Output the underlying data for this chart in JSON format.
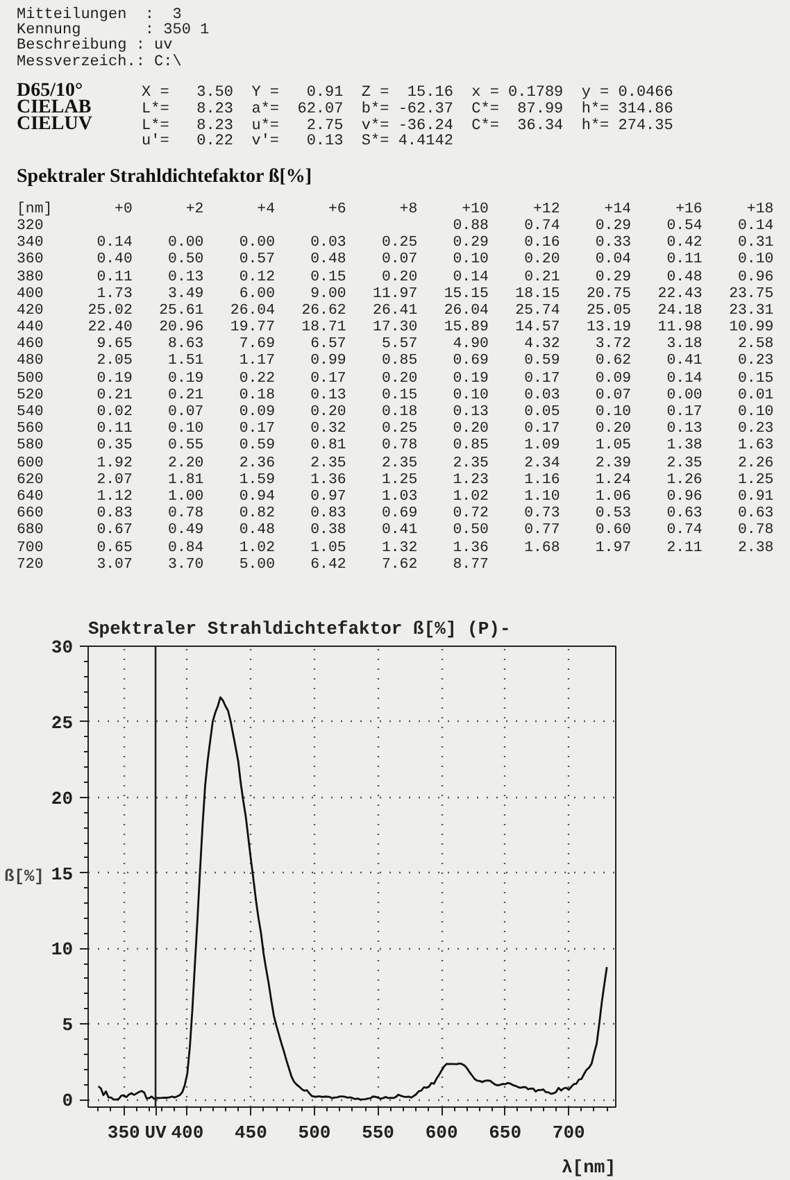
{
  "chart_data": {
    "type": "line",
    "title": "Spektraler Strahldichtefaktor ß[%]   (P)-",
    "ylabel": "ß[%]",
    "xlabel": "λ[nm]",
    "color": "#111111",
    "grid": true,
    "xlim": [
      322,
      737
    ],
    "ylim": [
      -0.5,
      30
    ],
    "xticks": [
      350,
      {
        "value": 375,
        "label": "UV"
      },
      400,
      450,
      500,
      550,
      600,
      650,
      700
    ],
    "yticks": [
      0,
      5,
      10,
      15,
      20,
      25,
      30
    ],
    "ref_lines": [
      {
        "axis": "x",
        "value": 375
      }
    ],
    "annotations": [
      "Mitteilungen  :  3",
      "Kennung       : 350 1",
      "Beschreibung : uv",
      "Messverzeich.: C:\\",
      "D65/10°",
      "X =   3.50  Y =   0.91  Z =  15.16  x = 0.1789  y = 0.0466",
      "CIELAB",
      "L*=   8.23  a*=  62.07  b*= -62.37  C*=  87.99  h*= 314.86",
      "CIELUV",
      "L*=   8.23  u*=   2.75  v*= -36.24  C*=  36.34  h*= 274.35",
      "u'=   0.22  v'=   0.13  S*= 4.4142",
      "Spektraler Strahldichtefaktor ß[%]",
      "[nm]       +0      +2      +4      +6      +8     +10     +12     +14     +16     +18",
      "320                                              0.88    0.74    0.29    0.54    0.14",
      "340      0.14    0.00    0.00    0.03    0.25    0.29    0.16    0.33    0.42    0.31",
      "360      0.40    0.50    0.57    0.48    0.07    0.10    0.20    0.04    0.11    0.10",
      "380      0.11    0.13    0.12    0.15    0.20    0.14    0.21    0.29    0.48    0.96",
      "400      1.73    3.49    6.00    9.00   11.97   15.15   18.15   20.75   22.43   23.75",
      "420     25.02   25.61   26.04   26.62   26.41   26.04   25.74   25.05   24.18   23.31",
      "440     22.40   20.96   19.77   18.71   17.30   15.89   14.57   13.19   11.98   10.99",
      "460      9.65    8.63    7.69    6.57    5.57    4.90    4.32    3.72    3.18    2.58",
      "480      2.05    1.51    1.17    0.99    0.85    0.69    0.59    0.62    0.41    0.23",
      "500      0.19    0.19    0.22    0.17    0.20    0.19    0.17    0.09    0.14    0.15",
      "520      0.21    0.21    0.18    0.13    0.15    0.10    0.03    0.07    0.00    0.01",
      "540      0.02    0.07    0.09    0.20    0.18    0.13    0.05    0.10    0.17    0.10",
      "560      0.11    0.10    0.17    0.32    0.25    0.20    0.17    0.20    0.13    0.23",
      "580      0.35    0.55    0.59    0.81    0.78    0.85    1.09    1.05    1.38    1.63",
      "600      1.92    2.20    2.36    2.35    2.35    2.35    2.34    2.39    2.35    2.26",
      "620      2.07    1.81    1.59    1.36    1.25    1.23    1.16    1.24    1.26    1.25",
      "640      1.12    1.00    0.94    0.97    1.03    1.02    1.10    1.06    0.96    0.91",
      "660      0.83    0.78    0.82    0.83    0.69    0.72    0.73    0.53    0.63    0.63",
      "680      0.67    0.49    0.48    0.38    0.41    0.50    0.77    0.60    0.74    0.78",
      "700      0.65    0.84    1.02    1.05    1.32    1.36    1.68    1.97    2.11    2.38",
      "720      3.07    3.70    5.00    6.42    7.62    8.77"
    ],
    "x": [
      330,
      332,
      334,
      336,
      338,
      340,
      342,
      344,
      346,
      348,
      350,
      352,
      354,
      356,
      358,
      360,
      362,
      364,
      366,
      368,
      370,
      372,
      374,
      376,
      378,
      380,
      382,
      384,
      386,
      388,
      390,
      392,
      394,
      396,
      398,
      400,
      402,
      404,
      406,
      408,
      410,
      412,
      414,
      416,
      418,
      420,
      422,
      424,
      426,
      428,
      430,
      432,
      434,
      436,
      438,
      440,
      442,
      444,
      446,
      448,
      450,
      452,
      454,
      456,
      458,
      460,
      462,
      464,
      466,
      468,
      470,
      472,
      474,
      476,
      478,
      480,
      482,
      484,
      486,
      488,
      490,
      492,
      494,
      496,
      498,
      500,
      502,
      504,
      506,
      508,
      510,
      512,
      514,
      516,
      518,
      520,
      522,
      524,
      526,
      528,
      530,
      532,
      534,
      536,
      538,
      540,
      542,
      544,
      546,
      548,
      550,
      552,
      554,
      556,
      558,
      560,
      562,
      564,
      566,
      568,
      570,
      572,
      574,
      576,
      578,
      580,
      582,
      584,
      586,
      588,
      590,
      592,
      594,
      596,
      598,
      600,
      602,
      604,
      606,
      608,
      610,
      612,
      614,
      616,
      618,
      620,
      622,
      624,
      626,
      628,
      630,
      632,
      634,
      636,
      638,
      640,
      642,
      644,
      646,
      648,
      650,
      652,
      654,
      656,
      658,
      660,
      662,
      664,
      666,
      668,
      670,
      672,
      674,
      676,
      678,
      680,
      682,
      684,
      686,
      688,
      690,
      692,
      694,
      696,
      698,
      700,
      702,
      704,
      706,
      708,
      710,
      712,
      714,
      716,
      718,
      720,
      722,
      724,
      726,
      728,
      730
    ],
    "values": [
      0.88,
      0.74,
      0.29,
      0.54,
      0.14,
      0.14,
      0.0,
      0.0,
      0.03,
      0.25,
      0.29,
      0.16,
      0.33,
      0.42,
      0.31,
      0.4,
      0.5,
      0.57,
      0.48,
      0.07,
      0.1,
      0.2,
      0.04,
      0.11,
      0.1,
      0.11,
      0.13,
      0.12,
      0.15,
      0.2,
      0.14,
      0.21,
      0.29,
      0.48,
      0.96,
      1.73,
      3.49,
      6.0,
      9.0,
      11.97,
      15.15,
      18.15,
      20.75,
      22.43,
      23.75,
      25.02,
      25.61,
      26.04,
      26.62,
      26.41,
      26.04,
      25.74,
      25.05,
      24.18,
      23.31,
      22.4,
      20.96,
      19.77,
      18.71,
      17.3,
      15.89,
      14.57,
      13.19,
      11.98,
      10.99,
      9.65,
      8.63,
      7.69,
      6.57,
      5.57,
      4.9,
      4.32,
      3.72,
      3.18,
      2.58,
      2.05,
      1.51,
      1.17,
      0.99,
      0.85,
      0.69,
      0.59,
      0.62,
      0.41,
      0.23,
      0.19,
      0.19,
      0.22,
      0.17,
      0.2,
      0.19,
      0.17,
      0.09,
      0.14,
      0.15,
      0.21,
      0.21,
      0.18,
      0.13,
      0.15,
      0.1,
      0.03,
      0.07,
      0.0,
      0.01,
      0.02,
      0.07,
      0.09,
      0.2,
      0.18,
      0.13,
      0.05,
      0.1,
      0.17,
      0.1,
      0.11,
      0.1,
      0.17,
      0.32,
      0.25,
      0.2,
      0.17,
      0.2,
      0.13,
      0.23,
      0.35,
      0.55,
      0.59,
      0.81,
      0.78,
      0.85,
      1.09,
      1.05,
      1.38,
      1.63,
      1.92,
      2.2,
      2.36,
      2.35,
      2.35,
      2.35,
      2.34,
      2.39,
      2.35,
      2.26,
      2.07,
      1.81,
      1.59,
      1.36,
      1.25,
      1.23,
      1.16,
      1.24,
      1.26,
      1.25,
      1.12,
      1.0,
      0.94,
      0.97,
      1.03,
      1.02,
      1.1,
      1.06,
      0.96,
      0.91,
      0.83,
      0.78,
      0.82,
      0.83,
      0.69,
      0.72,
      0.73,
      0.53,
      0.63,
      0.63,
      0.67,
      0.49,
      0.48,
      0.38,
      0.41,
      0.5,
      0.77,
      0.6,
      0.74,
      0.78,
      0.65,
      0.84,
      1.02,
      1.05,
      1.32,
      1.36,
      1.68,
      1.97,
      2.11,
      2.38,
      3.07,
      3.7,
      5.0,
      6.42,
      7.62,
      8.77
    ]
  }
}
